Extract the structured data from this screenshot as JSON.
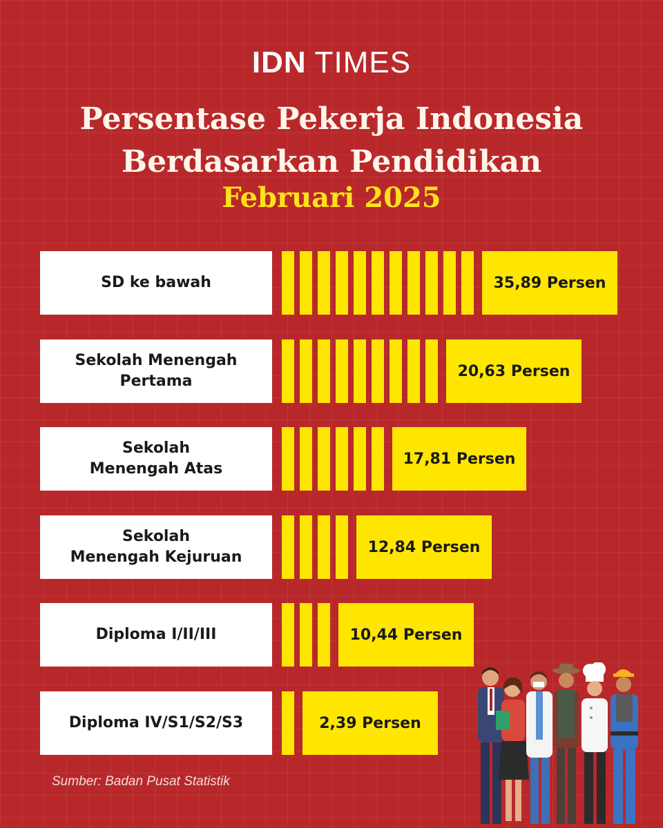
{
  "brand": {
    "part1": "IDN",
    "part2": "TIMES"
  },
  "title": "Persentase Pekerja Indonesia\nBerdasarkan Pendidikan",
  "subtitle": "Februari 2025",
  "source": "Sumber: Badan Pusat Statistik",
  "colors": {
    "background": "#b8282a",
    "bar": "#ffe600",
    "subtitle": "#ffe31a",
    "label_box": "#ffffff"
  },
  "illustration": {
    "name": "workers-illustration"
  },
  "chart_data": {
    "type": "bar",
    "orientation": "horizontal",
    "title": "Persentase Pekerja Indonesia Berdasarkan Pendidikan",
    "subtitle": "Februari 2025",
    "categories": [
      "SD ke bawah",
      "Sekolah Menengah\nPertama",
      "Sekolah\nMenengah Atas",
      "Sekolah\nMenengah Kejuruan",
      "Diploma I/II/III",
      "Diploma IV/S1/S2/S3"
    ],
    "values": [
      35.89,
      20.63,
      17.81,
      12.84,
      10.44,
      2.39
    ],
    "value_labels": [
      "35,89 Persen",
      "20,63 Persen",
      "17,81 Persen",
      "12,84 Persen",
      "10,44 Persen",
      "2,39 Persen"
    ],
    "stripe_counts": [
      11,
      9,
      6,
      4,
      3,
      1
    ],
    "unit": "Persen",
    "grid": true,
    "legend": "none"
  }
}
